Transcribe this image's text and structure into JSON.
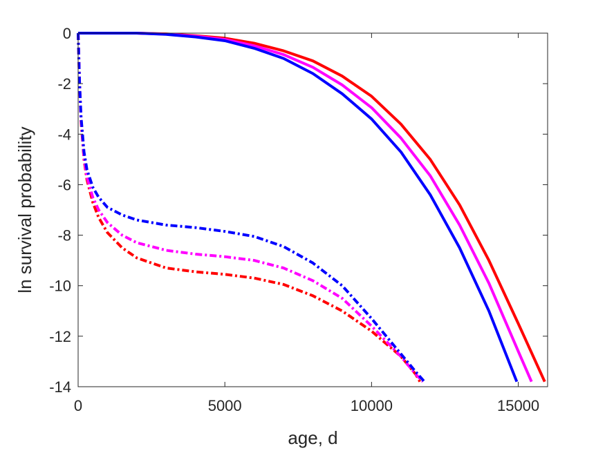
{
  "chart_data": {
    "type": "line",
    "title": "",
    "xlabel": "age, d",
    "ylabel": "ln survival probability",
    "xlim": [
      0,
      16000
    ],
    "ylim": [
      -14,
      0
    ],
    "x_ticks": [
      0,
      5000,
      10000,
      15000
    ],
    "x_tick_labels": [
      "0",
      "5000",
      "10000",
      "15000"
    ],
    "y_ticks": [
      0,
      -2,
      -4,
      -6,
      -8,
      -10,
      -12,
      -14
    ],
    "y_tick_labels": [
      "0",
      "-2",
      "-4",
      "-6",
      "-8",
      "-10",
      "-12",
      "-14"
    ],
    "grid": false,
    "legend": "none",
    "colors": {
      "red": "#ff0000",
      "magenta": "#ff00ff",
      "blue": "#0000ff",
      "axis": "#262626",
      "background": "#ffffff"
    },
    "series": [
      {
        "color": "#ff0000",
        "style": "solid",
        "x": [
          0,
          1000,
          2000,
          3000,
          4000,
          5000,
          6000,
          7000,
          8000,
          9000,
          10000,
          11000,
          12000,
          13000,
          14000,
          15000,
          15900
        ],
        "y": [
          0,
          0,
          0,
          -0.03,
          -0.1,
          -0.2,
          -0.4,
          -0.7,
          -1.1,
          -1.7,
          -2.5,
          -3.6,
          -5.0,
          -6.8,
          -9.0,
          -11.5,
          -13.8
        ]
      },
      {
        "color": "#ff00ff",
        "style": "solid",
        "x": [
          0,
          1000,
          2000,
          3000,
          4000,
          5000,
          6000,
          7000,
          8000,
          9000,
          10000,
          11000,
          12000,
          13000,
          14000,
          15000,
          15450
        ],
        "y": [
          0,
          0,
          0,
          -0.04,
          -0.12,
          -0.25,
          -0.5,
          -0.85,
          -1.35,
          -2.05,
          -2.95,
          -4.15,
          -5.65,
          -7.6,
          -9.9,
          -12.6,
          -13.8
        ]
      },
      {
        "color": "#0000ff",
        "style": "solid",
        "x": [
          0,
          1000,
          2000,
          3000,
          4000,
          5000,
          6000,
          7000,
          8000,
          9000,
          10000,
          11000,
          12000,
          13000,
          14000,
          14950
        ],
        "y": [
          0,
          0,
          0,
          -0.05,
          -0.15,
          -0.3,
          -0.6,
          -1.0,
          -1.6,
          -2.4,
          -3.4,
          -4.7,
          -6.4,
          -8.5,
          -11.0,
          -13.8
        ]
      },
      {
        "color": "#ff0000",
        "style": "dashdot",
        "x": [
          0,
          50,
          100,
          200,
          300,
          500,
          700,
          1000,
          1500,
          2000,
          3000,
          4000,
          5000,
          6000,
          7000,
          8000,
          9000,
          10000,
          10500,
          11000,
          11500,
          11650
        ],
        "y": [
          0,
          -2.0,
          -3.5,
          -5.0,
          -5.8,
          -6.7,
          -7.3,
          -7.9,
          -8.5,
          -8.9,
          -9.3,
          -9.45,
          -9.55,
          -9.7,
          -9.95,
          -10.4,
          -11.0,
          -11.8,
          -12.3,
          -12.8,
          -13.5,
          -13.8
        ]
      },
      {
        "color": "#ff00ff",
        "style": "dashdot",
        "x": [
          0,
          50,
          100,
          200,
          300,
          500,
          700,
          1000,
          1500,
          2000,
          3000,
          4000,
          5000,
          6000,
          7000,
          8000,
          9000,
          10000,
          10500,
          11000,
          11500,
          11750
        ],
        "y": [
          0,
          -2.0,
          -3.4,
          -4.9,
          -5.7,
          -6.5,
          -7.0,
          -7.5,
          -8.0,
          -8.3,
          -8.6,
          -8.75,
          -8.85,
          -9.0,
          -9.3,
          -9.8,
          -10.5,
          -11.6,
          -12.2,
          -12.8,
          -13.5,
          -13.8
        ]
      },
      {
        "color": "#0000ff",
        "style": "dashdot",
        "x": [
          0,
          50,
          100,
          200,
          300,
          500,
          700,
          1000,
          1500,
          2000,
          3000,
          4000,
          5000,
          6000,
          7000,
          8000,
          9000,
          10000,
          10500,
          11000,
          11500,
          11800
        ],
        "y": [
          0,
          -2.0,
          -3.3,
          -4.7,
          -5.4,
          -6.1,
          -6.5,
          -6.9,
          -7.2,
          -7.4,
          -7.6,
          -7.7,
          -7.85,
          -8.05,
          -8.45,
          -9.1,
          -10.0,
          -11.3,
          -12.0,
          -12.7,
          -13.4,
          -13.8
        ]
      }
    ]
  }
}
